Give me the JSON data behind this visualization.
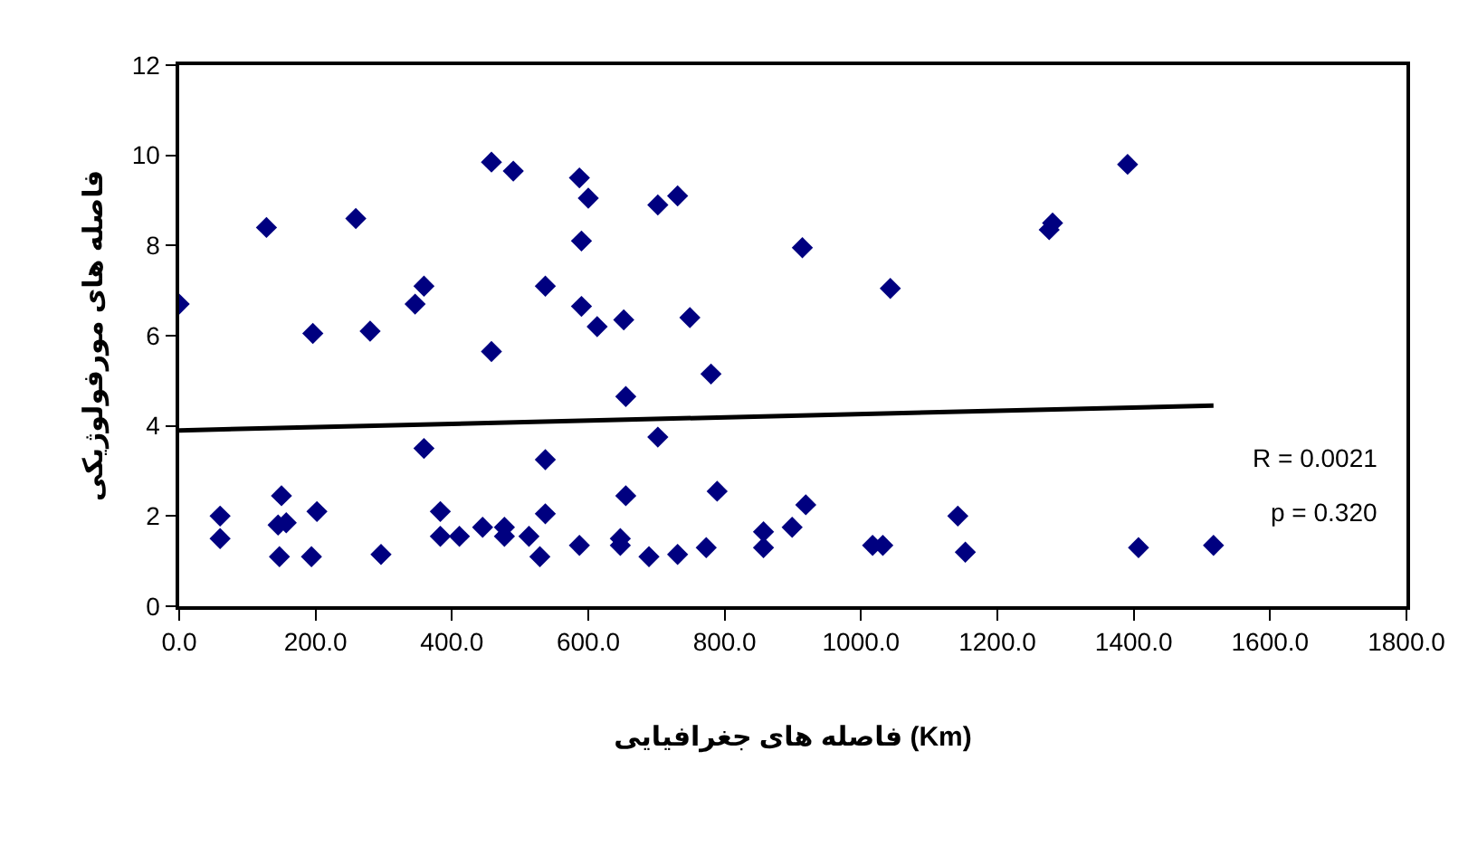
{
  "chart_data": {
    "type": "scatter",
    "xlabel": "فاصله های جغرافیایی (Km)",
    "ylabel": "فاصله های مورفولوژیکی",
    "xlim": [
      0,
      1800
    ],
    "ylim": [
      0,
      12
    ],
    "xticks": [
      {
        "value": 0,
        "label": "0.0"
      },
      {
        "value": 200,
        "label": "200.0"
      },
      {
        "value": 400,
        "label": "400.0"
      },
      {
        "value": 600,
        "label": "600.0"
      },
      {
        "value": 800,
        "label": "800.0"
      },
      {
        "value": 1000,
        "label": "1000.0"
      },
      {
        "value": 1200,
        "label": "1200.0"
      },
      {
        "value": 1400,
        "label": "1400.0"
      },
      {
        "value": 1600,
        "label": "1600.0"
      },
      {
        "value": 1800,
        "label": "1800.0"
      }
    ],
    "yticks": [
      0,
      2,
      4,
      6,
      8,
      10,
      12
    ],
    "grid": false,
    "marker": "diamond",
    "annotations": [
      "R = 0.0021",
      "p = 0.320"
    ],
    "series": [
      {
        "color": "#000080",
        "x": [
          0,
          60,
          60,
          128,
          150,
          145,
          157,
          147,
          196,
          202,
          194,
          259,
          296,
          280,
          346,
          359,
          359,
          383,
          383,
          411,
          445,
          477,
          477,
          513,
          529,
          458,
          490,
          537,
          537,
          537,
          458,
          587,
          600,
          590,
          590,
          613,
          587,
          702,
          731,
          914,
          1043,
          652,
          749,
          780,
          655,
          702,
          655,
          789,
          919,
          899,
          857,
          857,
          1142,
          1153,
          1017,
          1032,
          647,
          647,
          689,
          731,
          773,
          1391,
          1276,
          1281,
          1407,
          1517
        ],
        "values": [
          6.7,
          2.0,
          1.5,
          8.4,
          2.45,
          1.8,
          1.85,
          1.1,
          6.05,
          2.1,
          1.1,
          8.6,
          1.15,
          6.1,
          6.7,
          7.1,
          3.5,
          2.1,
          1.55,
          1.55,
          1.75,
          1.75,
          1.55,
          1.55,
          1.1,
          9.85,
          9.65,
          2.05,
          3.25,
          7.1,
          5.65,
          9.5,
          9.05,
          8.1,
          6.65,
          6.2,
          1.35,
          8.9,
          9.1,
          7.95,
          7.05,
          6.35,
          6.4,
          5.15,
          4.65,
          3.75,
          2.45,
          2.55,
          2.25,
          1.75,
          1.65,
          1.3,
          2.0,
          1.2,
          1.35,
          1.35,
          1.5,
          1.35,
          1.1,
          1.15,
          1.3,
          9.8,
          8.35,
          8.5,
          1.3,
          1.35
        ]
      },
      {
        "type": "line",
        "color": "#000000",
        "line_style": "solid",
        "marker": "none",
        "x": [
          0,
          1517
        ],
        "values": [
          3.9,
          4.45
        ]
      }
    ]
  }
}
